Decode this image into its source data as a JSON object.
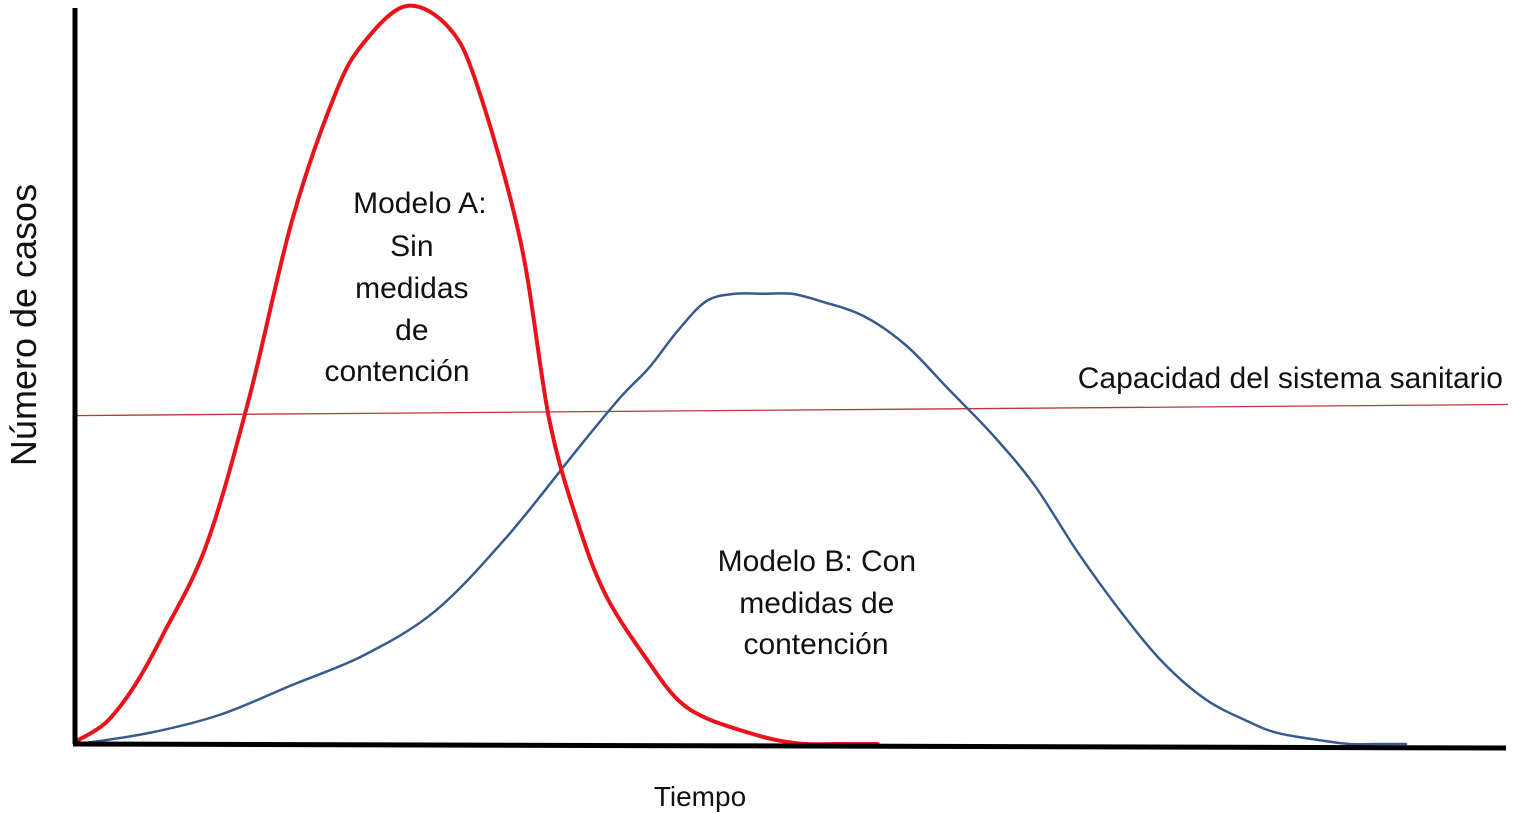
{
  "chart_data": {
    "type": "line",
    "title": "",
    "xlabel": "Tiempo",
    "ylabel": "Número de casos",
    "x_tick_labels": false,
    "y_tick_labels": false,
    "grid": false,
    "legend": "none",
    "xlim": [
      0,
      100
    ],
    "ylim": [
      0,
      100
    ],
    "series": [
      {
        "key": "modelo_a",
        "color": "#e8131b",
        "x": [
          0,
          2,
          4,
          6,
          9,
          12,
          15,
          18,
          20,
          23,
          26,
          28,
          31,
          33,
          35,
          37,
          40,
          42,
          44,
          47,
          49,
          51,
          53,
          55,
          56
        ],
        "y": [
          0.5,
          3,
          8,
          15,
          27,
          47,
          71,
          88,
          95,
          100,
          97,
          89,
          68,
          44,
          30,
          20,
          11,
          6,
          3.5,
          1.5,
          0.5,
          0,
          0,
          0,
          0
        ]
      },
      {
        "key": "modelo_b",
        "color": "#3a5a8f",
        "x": [
          0,
          5,
          10,
          15,
          20,
          25,
          30,
          35,
          38,
          40,
          42,
          44,
          46,
          48,
          50,
          52,
          55,
          58,
          61,
          64,
          67,
          70,
          73,
          76,
          79,
          82,
          84,
          87,
          89,
          91,
          93
        ],
        "y": [
          0,
          1.5,
          4,
          8,
          12,
          18,
          28,
          40,
          47,
          51,
          56,
          60,
          61,
          61,
          61,
          60,
          58,
          54,
          48,
          42,
          35,
          26,
          18,
          11,
          6,
          3,
          1.5,
          0.5,
          0,
          0,
          0
        ]
      }
    ],
    "reference_lines": [
      {
        "key": "capacidad",
        "label": "Capacidad del sistema sanitario",
        "color": "#b83a3a",
        "y_start": 44.5,
        "y_end": 46
      }
    ],
    "annotations": [
      {
        "key": "label_a",
        "lines": [
          "Modelo A:",
          "Sin",
          "medidas",
          "de",
          "contención"
        ]
      },
      {
        "key": "label_b",
        "lines": [
          "Modelo B: Con",
          "medidas de",
          "contención"
        ]
      }
    ]
  }
}
